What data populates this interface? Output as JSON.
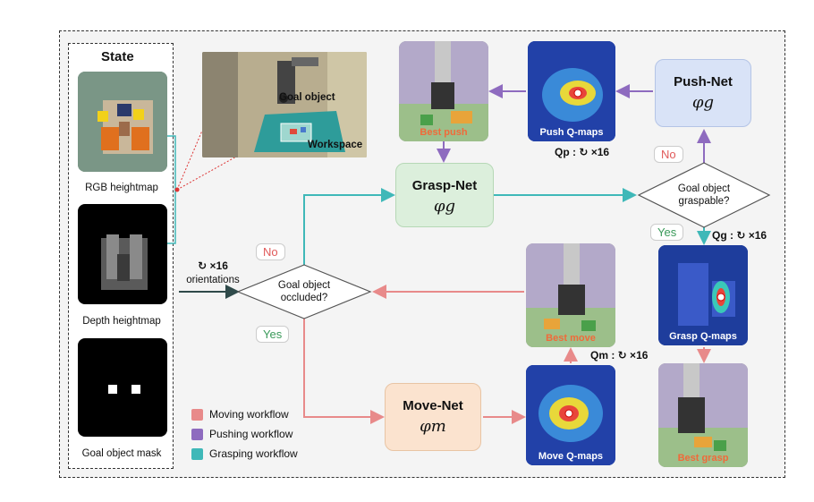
{
  "state": {
    "title": "State",
    "rgb_caption": "RGB heightmap",
    "depth_caption": "Depth heightmap",
    "mask_caption": "Goal object mask"
  },
  "inset": {
    "goal_object_label": "Goal object",
    "workspace_label": "Workspace"
  },
  "orientations": {
    "symbol": "↻ ×16",
    "label": "orientations"
  },
  "decisions": {
    "occluded": [
      "Goal object",
      "occluded?"
    ],
    "graspable": [
      "Goal object",
      "graspable?"
    ],
    "no_label": "No",
    "yes_label": "Yes"
  },
  "nets": {
    "grasp": {
      "name": "Grasp-Net",
      "symbol": "φg"
    },
    "push": {
      "name": "Push-Net",
      "symbol": "φg"
    },
    "move": {
      "name": "Move-Net",
      "symbol": "φm"
    }
  },
  "images": {
    "best_push": "Best push",
    "push_qmaps": "Push Q-maps",
    "best_move": "Best move",
    "move_qmaps": "Move Q-maps",
    "grasp_qmaps": "Grasp Q-maps",
    "best_grasp": "Best grasp"
  },
  "qlabels": {
    "qp": "Qp : ↻ ×16",
    "qg": "Qg : ↻ ×16",
    "qm": "Qm : ↻ ×16"
  },
  "legend": [
    {
      "label": "Moving workflow",
      "color": "#e88a8a"
    },
    {
      "label": "Pushing workflow",
      "color": "#8e6bbf"
    },
    {
      "label": "Grasping workflow",
      "color": "#3fb8b8"
    }
  ],
  "colors": {
    "move": "#e88a8a",
    "push": "#8e6bbf",
    "grasp": "#3fb8b8",
    "grasp_box": "#dcefdc",
    "push_box": "#d9e3f7",
    "move_box": "#fbe3cf"
  }
}
